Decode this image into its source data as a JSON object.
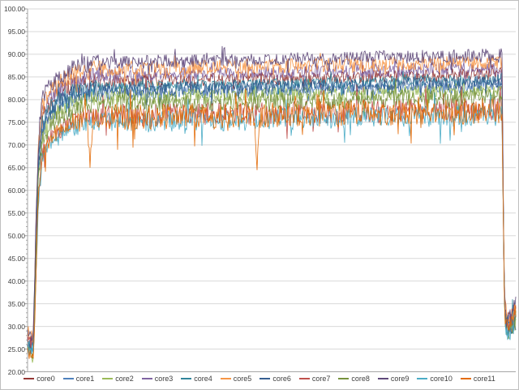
{
  "chart_data": {
    "type": "line",
    "title": "",
    "xlabel": "",
    "ylabel": "",
    "ylim": [
      20,
      100
    ],
    "ytick_step": 5,
    "ytick_minor_step": 1,
    "ytick_labels": [
      "100.00",
      "95.00",
      "90.00",
      "85.00",
      "80.00",
      "75.00",
      "70.00",
      "65.00",
      "60.00",
      "55.00",
      "50.00",
      "45.00",
      "40.00",
      "35.00",
      "30.00",
      "25.00",
      "20.00"
    ],
    "x_axis_labels_visible": false,
    "grid": "horizontal-major",
    "legend_position": "bottom",
    "description": "12 CPU core temperature traces: idle ~24-29, steep ramp, noisy plateau ~75-90, sharp drop back to ~28-35 at the end",
    "series": [
      {
        "name": "core0",
        "color": "#953735",
        "start": 26.0,
        "plateau": 84.8,
        "noise": 1.5,
        "tail": 31.5
      },
      {
        "name": "core1",
        "color": "#4F81BD",
        "start": 25.0,
        "plateau": 82.2,
        "noise": 1.5,
        "tail": 30.5
      },
      {
        "name": "core2",
        "color": "#9BBB59",
        "start": 24.5,
        "plateau": 81.2,
        "noise": 1.7,
        "tail": 30.0
      },
      {
        "name": "core3",
        "color": "#8064A2",
        "start": 27.0,
        "plateau": 86.2,
        "noise": 1.5,
        "tail": 32.0
      },
      {
        "name": "core4",
        "color": "#31859B",
        "start": 25.5,
        "plateau": 83.6,
        "noise": 1.2,
        "tail": 30.5
      },
      {
        "name": "core5",
        "color": "#F79646",
        "start": 28.0,
        "plateau": 87.5,
        "noise": 1.6,
        "tail": 32.5
      },
      {
        "name": "core6",
        "color": "#365F91",
        "start": 25.0,
        "plateau": 83.0,
        "noise": 1.5,
        "tail": 30.0
      },
      {
        "name": "core7",
        "color": "#C0504D",
        "start": 26.5,
        "plateau": 77.2,
        "noise": 2.6,
        "tail": 31.0
      },
      {
        "name": "core8",
        "color": "#76923C",
        "start": 24.0,
        "plateau": 79.8,
        "noise": 2.0,
        "tail": 29.5
      },
      {
        "name": "core9",
        "color": "#5F497A",
        "start": 28.5,
        "plateau": 89.0,
        "noise": 1.5,
        "tail": 33.0
      },
      {
        "name": "core10",
        "color": "#4BACC6",
        "start": 25.0,
        "plateau": 75.8,
        "noise": 2.4,
        "tail": 29.0
      },
      {
        "name": "core11",
        "color": "#E36C09",
        "start": 24.0,
        "plateau": 76.8,
        "noise": 2.9,
        "tail": 31.5,
        "dips": [
          [
            0.128,
            66.0
          ],
          [
            0.47,
            66.5
          ]
        ]
      }
    ],
    "shape": {
      "idle_until": 0.012,
      "idle_noise": 1.7,
      "ramp": [
        [
          0.016,
          -40
        ],
        [
          0.022,
          -18
        ],
        [
          0.03,
          -9
        ],
        [
          0.05,
          -5
        ],
        [
          0.09,
          -2
        ],
        [
          0.14,
          -0.8
        ]
      ],
      "ramp_noise": 2.0,
      "plateau_points": [
        0.16,
        0.3,
        0.45,
        0.6,
        0.75,
        0.9,
        0.972
      ],
      "drift": 1.6,
      "drop_mid": 40,
      "value_min": 21.5,
      "value_max": 94.5
    }
  },
  "colors": {
    "gridline": "#D9D9D9",
    "axis": "#A6A6A6",
    "text": "#404040",
    "frame": "#BFBFBF",
    "background": "#FFFFFF"
  }
}
